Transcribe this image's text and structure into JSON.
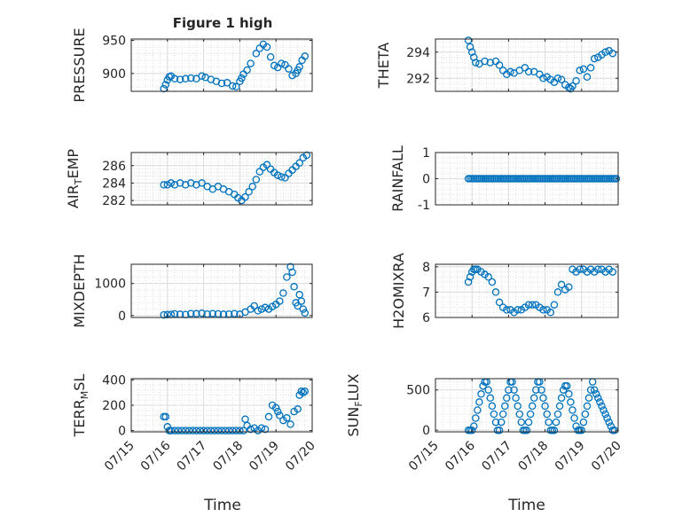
{
  "figure": {
    "title": "Figure 1 high",
    "series_color": "#0072BD",
    "x_tick_labels": [
      "07/15",
      "07/16",
      "07/17",
      "07/18",
      "07/19",
      "07/20"
    ],
    "xlabel": "Time"
  },
  "chart_data": [
    {
      "type": "scatter",
      "id": "pressure",
      "ylabel": "PRESSURE",
      "ylim": [
        873,
        952
      ],
      "yticks": [
        900,
        950
      ],
      "xlim": [
        0,
        5
      ],
      "grid": true,
      "x": [
        0.9,
        0.95,
        1.0,
        1.05,
        1.1,
        1.2,
        1.35,
        1.5,
        1.65,
        1.8,
        1.95,
        2.05,
        2.2,
        2.35,
        2.5,
        2.65,
        2.8,
        2.9,
        3.0,
        3.05,
        3.1,
        3.2,
        3.3,
        3.45,
        3.55,
        3.65,
        3.75,
        3.85,
        3.95,
        4.05,
        4.15,
        4.25,
        4.35,
        4.45,
        4.55,
        4.6,
        4.65,
        4.72,
        4.8
      ],
      "y": [
        877,
        883,
        890,
        895,
        896,
        892,
        891,
        892,
        893,
        892,
        896,
        894,
        891,
        888,
        885,
        886,
        881,
        880,
        888,
        893,
        899,
        905,
        915,
        930,
        938,
        944,
        940,
        925,
        912,
        909,
        915,
        913,
        907,
        897,
        900,
        905,
        910,
        920,
        926
      ]
    },
    {
      "type": "scatter",
      "id": "theta",
      "ylabel": "THETA",
      "ylim": [
        291,
        295
      ],
      "yticks": [
        292,
        294
      ],
      "xlim": [
        0,
        5
      ],
      "grid": true,
      "x": [
        0.9,
        0.95,
        1.0,
        1.05,
        1.1,
        1.2,
        1.35,
        1.5,
        1.65,
        1.75,
        1.85,
        1.95,
        2.05,
        2.15,
        2.3,
        2.45,
        2.55,
        2.7,
        2.85,
        2.95,
        3.05,
        3.15,
        3.25,
        3.35,
        3.45,
        3.55,
        3.65,
        3.7,
        3.75,
        3.85,
        3.95,
        4.05,
        4.15,
        4.25,
        4.35,
        4.45,
        4.55,
        4.65,
        4.75,
        4.85
      ],
      "y": [
        294.9,
        294.4,
        294.0,
        293.6,
        293.2,
        293.1,
        293.3,
        293.2,
        293.3,
        293.0,
        292.6,
        292.3,
        292.5,
        292.4,
        292.6,
        292.8,
        292.5,
        292.5,
        292.3,
        292.0,
        292.1,
        291.9,
        291.7,
        292.0,
        291.9,
        291.5,
        291.3,
        291.2,
        291.4,
        291.8,
        292.6,
        292.7,
        292.1,
        292.8,
        293.5,
        293.6,
        293.8,
        294.0,
        294.1,
        293.9
      ]
    },
    {
      "type": "scatter",
      "id": "air-temp",
      "ylabel": "AIR",
      "ylabel_sub": "T",
      "ylabel_rest": "EMP",
      "ylim": [
        281.5,
        287.5
      ],
      "yticks": [
        282,
        284,
        286
      ],
      "xlim": [
        0,
        5
      ],
      "grid": true,
      "x": [
        0.9,
        1.0,
        1.1,
        1.2,
        1.35,
        1.5,
        1.65,
        1.8,
        1.95,
        2.1,
        2.25,
        2.4,
        2.55,
        2.7,
        2.85,
        2.95,
        3.05,
        3.15,
        3.25,
        3.35,
        3.45,
        3.55,
        3.65,
        3.75,
        3.85,
        3.95,
        4.05,
        4.15,
        4.25,
        4.35,
        4.45,
        4.55,
        4.65,
        4.75,
        4.85
      ],
      "y": [
        283.8,
        283.8,
        284.0,
        283.8,
        284.0,
        283.8,
        284.0,
        283.8,
        284.0,
        283.6,
        283.3,
        283.6,
        283.3,
        283.0,
        282.7,
        282.3,
        282.0,
        282.4,
        283.0,
        283.6,
        284.4,
        285.3,
        285.8,
        286.1,
        285.6,
        285.2,
        284.9,
        284.7,
        284.6,
        285.1,
        285.5,
        285.9,
        286.3,
        286.9,
        287.2
      ]
    },
    {
      "type": "scatter",
      "id": "rainfall",
      "ylabel": "RAINFALL",
      "ylim": [
        -1,
        1
      ],
      "yticks": [
        -1,
        0,
        1
      ],
      "xlim": [
        0,
        5
      ],
      "grid": true,
      "x_range": [
        0.9,
        4.95
      ],
      "y_constant": 0,
      "count": 80
    },
    {
      "type": "scatter",
      "id": "mixdepth",
      "ylabel": "MIXDEPTH",
      "ylim": [
        -60,
        1600
      ],
      "yticks": [
        0,
        1000
      ],
      "xlim": [
        0,
        5
      ],
      "grid": true,
      "x": [
        0.9,
        1.0,
        1.1,
        1.2,
        1.35,
        1.5,
        1.65,
        1.8,
        1.95,
        2.1,
        2.25,
        2.4,
        2.55,
        2.7,
        2.85,
        3.0,
        3.15,
        3.3,
        3.4,
        3.5,
        3.6,
        3.7,
        3.8,
        3.9,
        4.0,
        4.1,
        4.2,
        4.3,
        4.4,
        4.45,
        4.5,
        4.55,
        4.6,
        4.65,
        4.7,
        4.75,
        4.8
      ],
      "y": [
        20,
        30,
        35,
        50,
        40,
        30,
        60,
        55,
        70,
        45,
        60,
        50,
        40,
        45,
        60,
        40,
        110,
        200,
        300,
        150,
        200,
        250,
        200,
        280,
        350,
        450,
        700,
        1200,
        1520,
        1350,
        900,
        400,
        300,
        650,
        450,
        200,
        80
      ]
    },
    {
      "type": "scatter",
      "id": "h2omixra",
      "ylabel": "H2OMIXRA",
      "ylim": [
        6,
        8.1
      ],
      "yticks": [
        6,
        7,
        8
      ],
      "xlim": [
        0,
        5
      ],
      "grid": true,
      "x": [
        0.9,
        0.95,
        1.0,
        1.05,
        1.1,
        1.15,
        1.25,
        1.35,
        1.45,
        1.55,
        1.65,
        1.75,
        1.85,
        1.95,
        2.05,
        2.15,
        2.25,
        2.35,
        2.45,
        2.55,
        2.65,
        2.75,
        2.85,
        2.95,
        3.05,
        3.15,
        3.25,
        3.35,
        3.45,
        3.55,
        3.65,
        3.75,
        3.85,
        3.95,
        4.05,
        4.15,
        4.25,
        4.35,
        4.45,
        4.55,
        4.65,
        4.75,
        4.85
      ],
      "y": [
        7.4,
        7.6,
        7.8,
        7.9,
        7.9,
        7.9,
        7.8,
        7.7,
        7.6,
        7.4,
        7.0,
        6.6,
        6.4,
        6.3,
        6.3,
        6.2,
        6.3,
        6.3,
        6.4,
        6.5,
        6.5,
        6.5,
        6.4,
        6.3,
        6.3,
        6.2,
        6.5,
        7.0,
        7.3,
        7.1,
        7.2,
        7.9,
        7.8,
        7.9,
        7.9,
        7.8,
        7.9,
        7.8,
        7.9,
        7.9,
        7.8,
        7.9,
        7.8
      ]
    },
    {
      "type": "scatter",
      "id": "terr-msl",
      "ylabel": "TERR",
      "ylabel_sub": "M",
      "ylabel_rest": "SL",
      "ylim": [
        -10,
        410
      ],
      "yticks": [
        0,
        200,
        400
      ],
      "xlim": [
        0,
        5
      ],
      "grid": true,
      "x": [
        0.9,
        0.95,
        1.0,
        1.05,
        1.1,
        1.2,
        1.3,
        1.4,
        1.5,
        1.6,
        1.7,
        1.8,
        1.9,
        2.0,
        2.1,
        2.2,
        2.3,
        2.4,
        2.5,
        2.6,
        2.7,
        2.8,
        2.9,
        3.0,
        3.1,
        3.15,
        3.2,
        3.3,
        3.4,
        3.5,
        3.6,
        3.7,
        3.8,
        3.9,
        4.0,
        4.05,
        4.1,
        4.2,
        4.3,
        4.4,
        4.5,
        4.6,
        4.65,
        4.7,
        4.75,
        4.8
      ],
      "y": [
        110,
        110,
        30,
        0,
        0,
        0,
        0,
        0,
        0,
        0,
        0,
        0,
        0,
        0,
        0,
        0,
        0,
        0,
        0,
        0,
        0,
        0,
        0,
        0,
        0,
        90,
        40,
        10,
        20,
        0,
        20,
        10,
        110,
        200,
        180,
        150,
        120,
        80,
        100,
        50,
        150,
        170,
        280,
        310,
        300,
        310
      ]
    },
    {
      "type": "scatter",
      "id": "sun-flux",
      "ylabel": "SUN",
      "ylabel_sub": "F",
      "ylabel_rest": "LUX",
      "ylim": [
        -20,
        640
      ],
      "yticks": [
        0,
        500
      ],
      "xlim": [
        0,
        5
      ],
      "grid": true,
      "x": [
        0.9,
        0.95,
        1.0,
        1.05,
        1.1,
        1.15,
        1.2,
        1.25,
        1.3,
        1.35,
        1.4,
        1.45,
        1.5,
        1.55,
        1.6,
        1.65,
        1.7,
        1.75,
        1.8,
        1.85,
        1.9,
        1.95,
        2.0,
        2.05,
        2.1,
        2.15,
        2.2,
        2.25,
        2.3,
        2.35,
        2.4,
        2.45,
        2.5,
        2.55,
        2.6,
        2.65,
        2.7,
        2.75,
        2.8,
        2.85,
        2.9,
        2.95,
        3.0,
        3.05,
        3.1,
        3.15,
        3.2,
        3.25,
        3.3,
        3.35,
        3.4,
        3.45,
        3.5,
        3.55,
        3.6,
        3.65,
        3.7,
        3.75,
        3.8,
        3.85,
        3.9,
        3.95,
        4.0,
        4.05,
        4.1,
        4.15,
        4.2,
        4.25,
        4.3,
        4.35,
        4.4,
        4.45,
        4.5,
        4.55,
        4.6,
        4.65,
        4.7,
        4.75,
        4.8,
        4.85,
        4.9
      ],
      "y": [
        0,
        0,
        0,
        50,
        150,
        250,
        350,
        450,
        550,
        600,
        600,
        500,
        400,
        300,
        200,
        100,
        0,
        0,
        100,
        200,
        300,
        400,
        500,
        600,
        600,
        500,
        400,
        300,
        200,
        100,
        0,
        0,
        0,
        100,
        200,
        300,
        400,
        500,
        600,
        600,
        500,
        400,
        300,
        200,
        100,
        0,
        0,
        0,
        100,
        200,
        300,
        400,
        500,
        550,
        550,
        450,
        350,
        250,
        150,
        50,
        0,
        0,
        0,
        100,
        200,
        300,
        400,
        500,
        600,
        500,
        450,
        400,
        350,
        300,
        250,
        200,
        150,
        100,
        50,
        0,
        0
      ]
    }
  ]
}
